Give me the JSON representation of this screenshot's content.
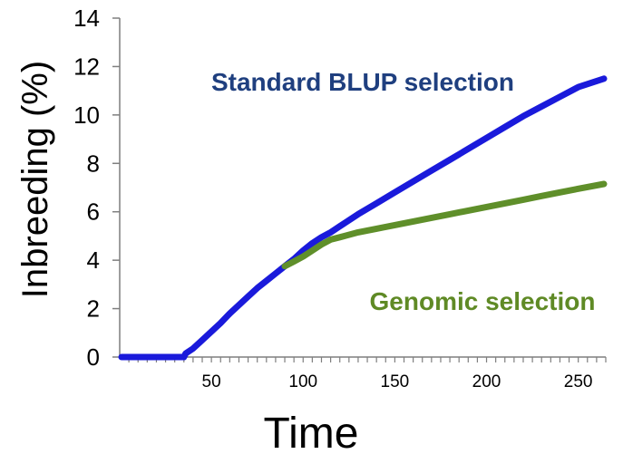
{
  "chart_data": {
    "type": "line",
    "title": "",
    "xlabel": "Time",
    "ylabel": "Inbreeding (%)",
    "xlim": [
      0,
      265
    ],
    "ylim": [
      0,
      14
    ],
    "x_ticks": [
      50,
      100,
      150,
      200,
      250
    ],
    "y_ticks": [
      0,
      2,
      4,
      6,
      8,
      10,
      12,
      14
    ],
    "legend": "none (direct series labels)",
    "grid": false,
    "series": [
      {
        "name": "Standard BLUP selection",
        "color": "#1a1adb",
        "label_color": "#1f3f7f",
        "points": [
          [
            1,
            0
          ],
          [
            35,
            0
          ],
          [
            36,
            0.15
          ],
          [
            40,
            0.35
          ],
          [
            45,
            0.7
          ],
          [
            50,
            1.05
          ],
          [
            55,
            1.4
          ],
          [
            60,
            1.8
          ],
          [
            65,
            2.15
          ],
          [
            70,
            2.5
          ],
          [
            75,
            2.85
          ],
          [
            80,
            3.15
          ],
          [
            85,
            3.45
          ],
          [
            90,
            3.75
          ],
          [
            95,
            4.05
          ],
          [
            100,
            4.4
          ],
          [
            105,
            4.7
          ],
          [
            110,
            4.95
          ],
          [
            115,
            5.15
          ],
          [
            120,
            5.4
          ],
          [
            130,
            5.9
          ],
          [
            140,
            6.35
          ],
          [
            150,
            6.8
          ],
          [
            160,
            7.25
          ],
          [
            170,
            7.7
          ],
          [
            180,
            8.15
          ],
          [
            190,
            8.6
          ],
          [
            200,
            9.05
          ],
          [
            210,
            9.5
          ],
          [
            220,
            9.95
          ],
          [
            230,
            10.35
          ],
          [
            240,
            10.75
          ],
          [
            250,
            11.15
          ],
          [
            264,
            11.5
          ]
        ]
      },
      {
        "name": "Genomic selection",
        "color": "#5f8f2a",
        "label_color": "#5f8a25",
        "points": [
          [
            90,
            3.75
          ],
          [
            95,
            3.95
          ],
          [
            100,
            4.15
          ],
          [
            105,
            4.4
          ],
          [
            110,
            4.65
          ],
          [
            115,
            4.85
          ],
          [
            120,
            4.95
          ],
          [
            130,
            5.15
          ],
          [
            140,
            5.3
          ],
          [
            150,
            5.45
          ],
          [
            160,
            5.6
          ],
          [
            170,
            5.75
          ],
          [
            180,
            5.9
          ],
          [
            190,
            6.05
          ],
          [
            200,
            6.2
          ],
          [
            210,
            6.35
          ],
          [
            220,
            6.5
          ],
          [
            230,
            6.65
          ],
          [
            240,
            6.8
          ],
          [
            250,
            6.95
          ],
          [
            264,
            7.15
          ]
        ]
      }
    ]
  }
}
